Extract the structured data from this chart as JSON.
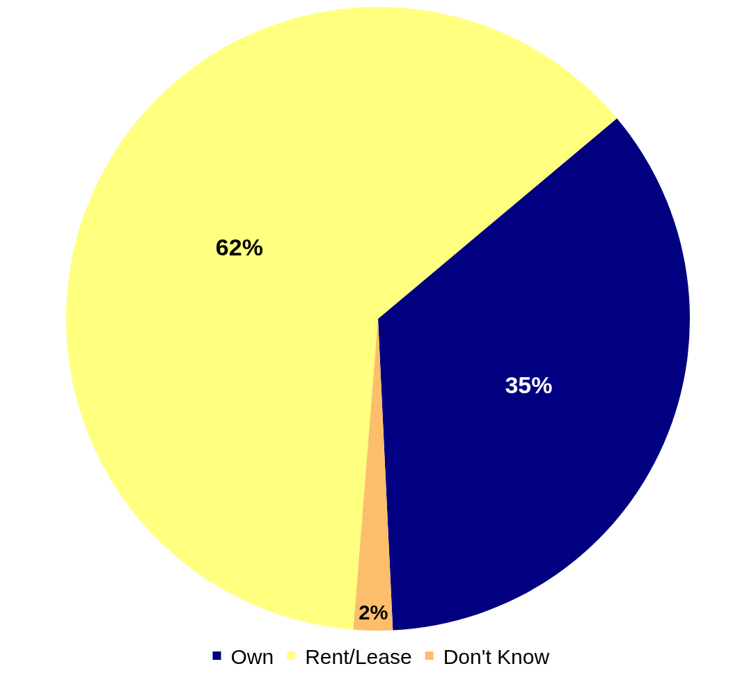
{
  "chart_data": {
    "type": "pie",
    "categories": [
      "Own",
      "Rent/Lease",
      "Don't Know"
    ],
    "values": [
      35,
      62,
      2
    ],
    "colors": [
      "#000080",
      "#ffff80",
      "#fcbe6a"
    ],
    "value_labels": [
      "35%",
      "62%",
      "2%"
    ],
    "legend": "bottom"
  }
}
